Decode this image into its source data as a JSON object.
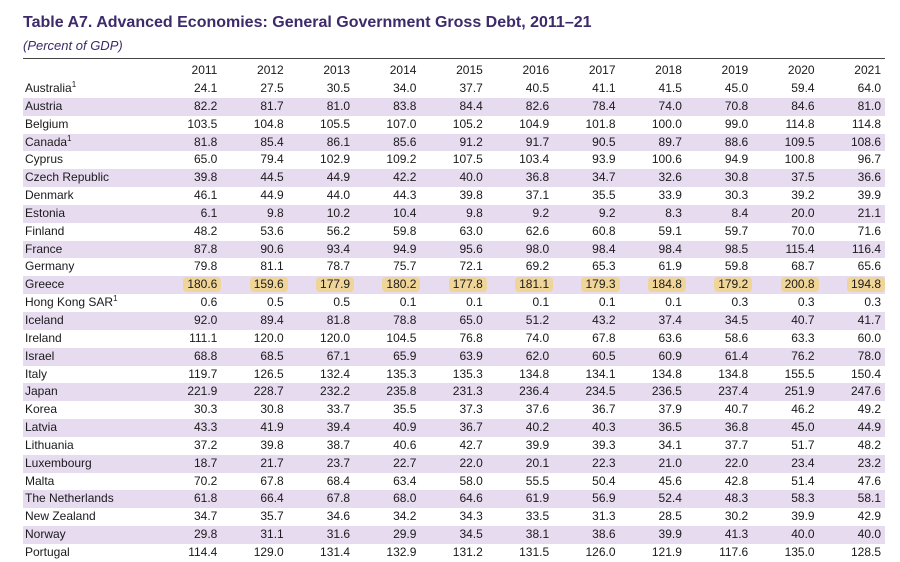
{
  "title": "Table A7. Advanced Economies: General Government Gross Debt, 2011–21",
  "subtitle": "(Percent of GDP)",
  "years": [
    "2011",
    "2012",
    "2013",
    "2014",
    "2015",
    "2016",
    "2017",
    "2018",
    "2019",
    "2020",
    "2021"
  ],
  "rows": [
    {
      "country": "Australia",
      "sup": "1",
      "values": [
        "24.1",
        "27.5",
        "30.5",
        "34.0",
        "37.7",
        "40.5",
        "41.1",
        "41.5",
        "45.0",
        "59.4",
        "64.0"
      ]
    },
    {
      "country": "Austria",
      "values": [
        "82.2",
        "81.7",
        "81.0",
        "83.8",
        "84.4",
        "82.6",
        "78.4",
        "74.0",
        "70.8",
        "84.6",
        "81.0"
      ]
    },
    {
      "country": "Belgium",
      "values": [
        "103.5",
        "104.8",
        "105.5",
        "107.0",
        "105.2",
        "104.9",
        "101.8",
        "100.0",
        "99.0",
        "114.8",
        "114.8"
      ]
    },
    {
      "country": "Canada",
      "sup": "1",
      "values": [
        "81.8",
        "85.4",
        "86.1",
        "85.6",
        "91.2",
        "91.7",
        "90.5",
        "89.7",
        "88.6",
        "109.5",
        "108.6"
      ]
    },
    {
      "country": "Cyprus",
      "values": [
        "65.0",
        "79.4",
        "102.9",
        "109.2",
        "107.5",
        "103.4",
        "93.9",
        "100.6",
        "94.9",
        "100.8",
        "96.7"
      ]
    },
    {
      "country": "Czech Republic",
      "values": [
        "39.8",
        "44.5",
        "44.9",
        "42.2",
        "40.0",
        "36.8",
        "34.7",
        "32.6",
        "30.8",
        "37.5",
        "36.6"
      ]
    },
    {
      "country": "Denmark",
      "values": [
        "46.1",
        "44.9",
        "44.0",
        "44.3",
        "39.8",
        "37.1",
        "35.5",
        "33.9",
        "30.3",
        "39.2",
        "39.9"
      ]
    },
    {
      "country": "Estonia",
      "values": [
        "6.1",
        "9.8",
        "10.2",
        "10.4",
        "9.8",
        "9.2",
        "9.2",
        "8.3",
        "8.4",
        "20.0",
        "21.1"
      ]
    },
    {
      "country": "Finland",
      "values": [
        "48.2",
        "53.6",
        "56.2",
        "59.8",
        "63.0",
        "62.6",
        "60.8",
        "59.1",
        "59.7",
        "70.0",
        "71.6"
      ]
    },
    {
      "country": "France",
      "values": [
        "87.8",
        "90.6",
        "93.4",
        "94.9",
        "95.6",
        "98.0",
        "98.4",
        "98.4",
        "98.5",
        "115.4",
        "116.4"
      ]
    },
    {
      "country": "Germany",
      "values": [
        "79.8",
        "81.1",
        "78.7",
        "75.7",
        "72.1",
        "69.2",
        "65.3",
        "61.9",
        "59.8",
        "68.7",
        "65.6"
      ]
    },
    {
      "country": "Greece",
      "highlight": true,
      "values": [
        "180.6",
        "159.6",
        "177.9",
        "180.2",
        "177.8",
        "181.1",
        "179.3",
        "184.8",
        "179.2",
        "200.8",
        "194.8"
      ]
    },
    {
      "country": "Hong Kong SAR",
      "sup": "1",
      "values": [
        "0.6",
        "0.5",
        "0.5",
        "0.1",
        "0.1",
        "0.1",
        "0.1",
        "0.1",
        "0.3",
        "0.3",
        "0.3"
      ]
    },
    {
      "country": "Iceland",
      "values": [
        "92.0",
        "89.4",
        "81.8",
        "78.8",
        "65.0",
        "51.2",
        "43.2",
        "37.4",
        "34.5",
        "40.7",
        "41.7"
      ]
    },
    {
      "country": "Ireland",
      "values": [
        "111.1",
        "120.0",
        "120.0",
        "104.5",
        "76.8",
        "74.0",
        "67.8",
        "63.6",
        "58.6",
        "63.3",
        "60.0"
      ]
    },
    {
      "country": "Israel",
      "values": [
        "68.8",
        "68.5",
        "67.1",
        "65.9",
        "63.9",
        "62.0",
        "60.5",
        "60.9",
        "61.4",
        "76.2",
        "78.0"
      ]
    },
    {
      "country": "Italy",
      "values": [
        "119.7",
        "126.5",
        "132.4",
        "135.3",
        "135.3",
        "134.8",
        "134.1",
        "134.8",
        "134.8",
        "155.5",
        "150.4"
      ]
    },
    {
      "country": "Japan",
      "values": [
        "221.9",
        "228.7",
        "232.2",
        "235.8",
        "231.3",
        "236.4",
        "234.5",
        "236.5",
        "237.4",
        "251.9",
        "247.6"
      ]
    },
    {
      "country": "Korea",
      "values": [
        "30.3",
        "30.8",
        "33.7",
        "35.5",
        "37.3",
        "37.6",
        "36.7",
        "37.9",
        "40.7",
        "46.2",
        "49.2"
      ]
    },
    {
      "country": "Latvia",
      "values": [
        "43.3",
        "41.9",
        "39.4",
        "40.9",
        "36.7",
        "40.2",
        "40.3",
        "36.5",
        "36.8",
        "45.0",
        "44.9"
      ]
    },
    {
      "country": "Lithuania",
      "values": [
        "37.2",
        "39.8",
        "38.7",
        "40.6",
        "42.7",
        "39.9",
        "39.3",
        "34.1",
        "37.7",
        "51.7",
        "48.2"
      ]
    },
    {
      "country": "Luxembourg",
      "values": [
        "18.7",
        "21.7",
        "23.7",
        "22.7",
        "22.0",
        "20.1",
        "22.3",
        "21.0",
        "22.0",
        "23.4",
        "23.2"
      ]
    },
    {
      "country": "Malta",
      "values": [
        "70.2",
        "67.8",
        "68.4",
        "63.4",
        "58.0",
        "55.5",
        "50.4",
        "45.6",
        "42.8",
        "51.4",
        "47.6"
      ]
    },
    {
      "country": "The Netherlands",
      "values": [
        "61.8",
        "66.4",
        "67.8",
        "68.0",
        "64.6",
        "61.9",
        "56.9",
        "52.4",
        "48.3",
        "58.3",
        "58.1"
      ]
    },
    {
      "country": "New Zealand",
      "values": [
        "34.7",
        "35.7",
        "34.6",
        "34.2",
        "34.3",
        "33.5",
        "31.3",
        "28.5",
        "30.2",
        "39.9",
        "42.9"
      ]
    },
    {
      "country": "Norway",
      "values": [
        "29.8",
        "31.1",
        "31.6",
        "29.9",
        "34.5",
        "38.1",
        "38.6",
        "39.9",
        "41.3",
        "40.0",
        "40.0"
      ]
    },
    {
      "country": "Portugal",
      "values": [
        "114.4",
        "129.0",
        "131.4",
        "132.9",
        "131.2",
        "131.5",
        "126.0",
        "121.9",
        "117.6",
        "135.0",
        "128.5"
      ]
    }
  ],
  "colors": {
    "title": "#3d2a6b",
    "shade": "#e7dbf0",
    "highlight": "#f0d599"
  }
}
